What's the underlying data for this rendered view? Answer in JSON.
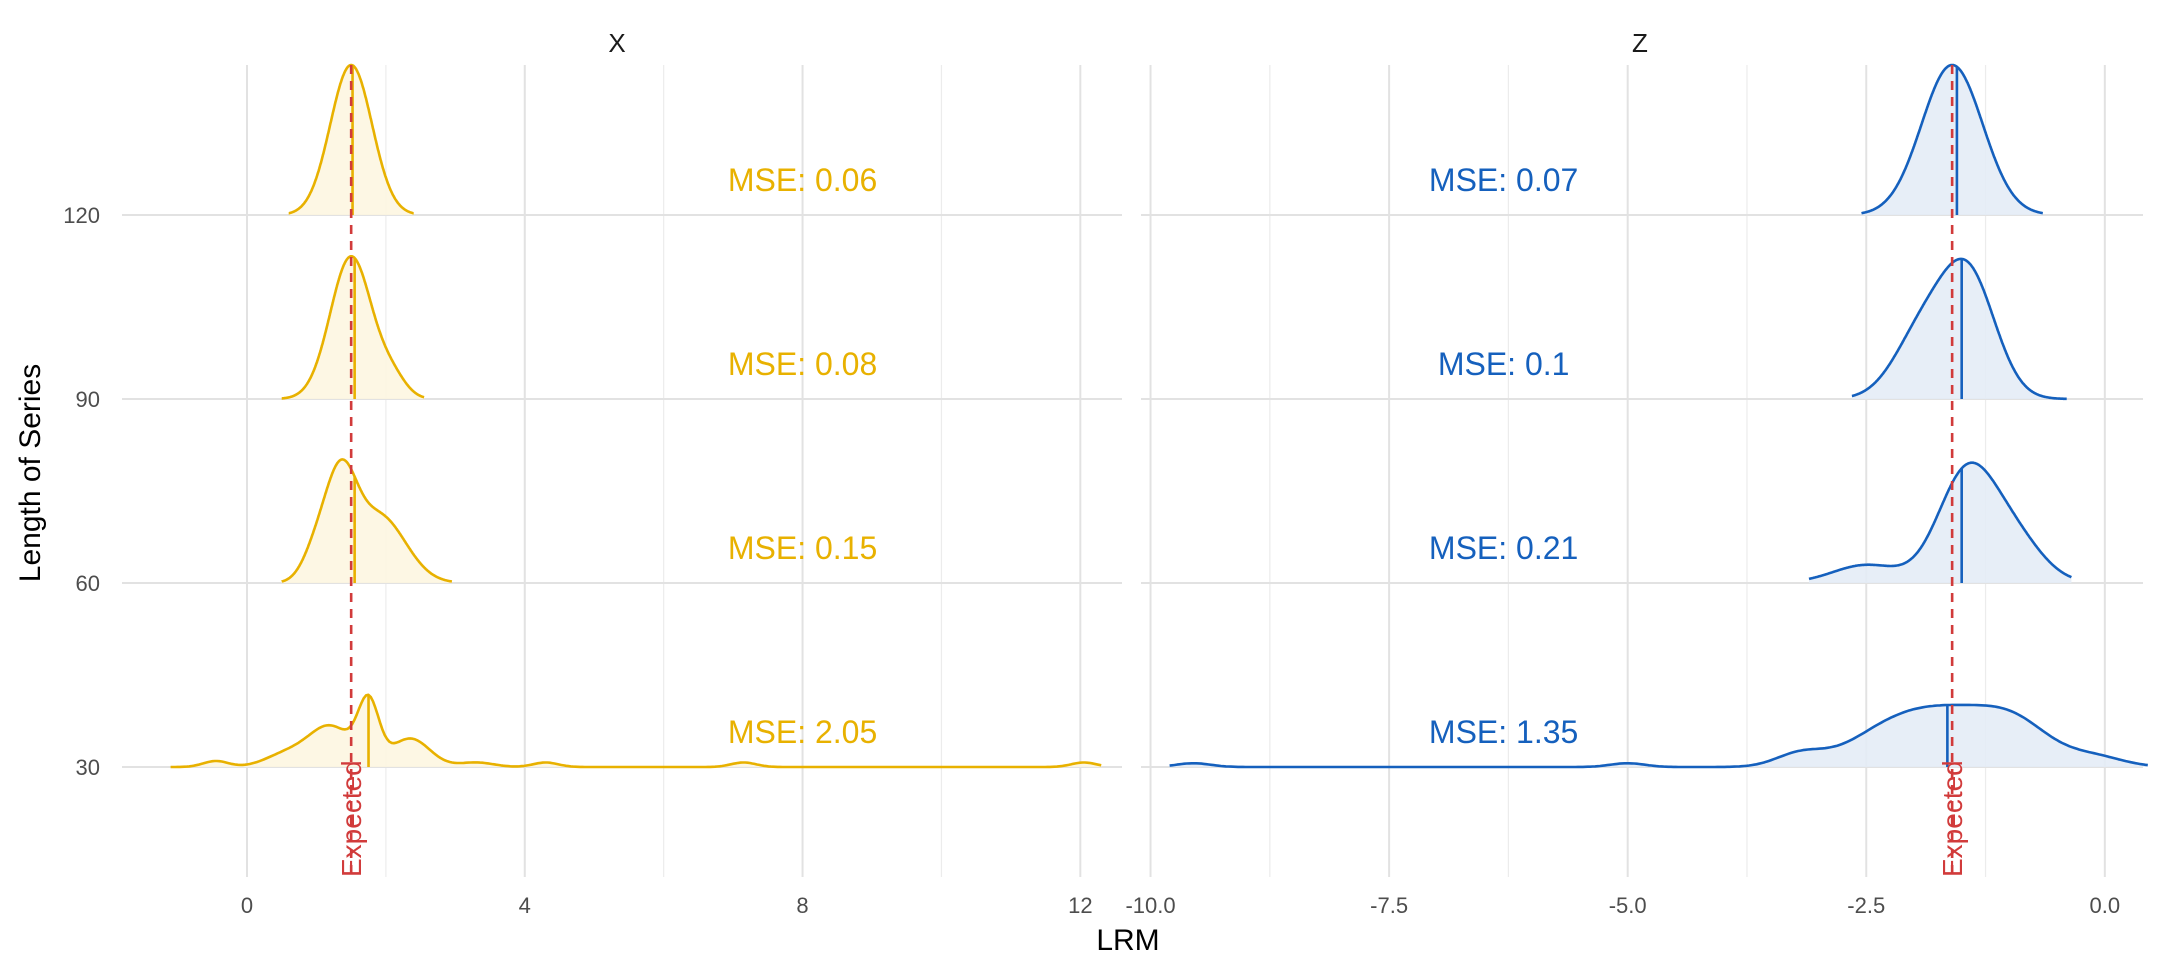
{
  "chart_data": {
    "type": "ridgeline",
    "xlabel": "LRM",
    "ylabel": "Length of Series",
    "y_ticks": [
      30,
      60,
      90,
      120
    ],
    "expected_label": "Expected",
    "expected_color": "#d13b3b",
    "panels": [
      {
        "title": "X",
        "color": "#e8b100",
        "fill": "#fdf6e1",
        "xlim": [
          -1.8,
          12.6
        ],
        "x_ticks": [
          0,
          4,
          8,
          12
        ],
        "x_tick_labels": [
          "0",
          "4",
          "8",
          "12"
        ],
        "expected": 1.5,
        "series": [
          {
            "length": 120,
            "mse_label": "MSE: 0.06",
            "mse_x": 8.0,
            "mean": 1.52,
            "range": [
              0.6,
              2.4
            ],
            "peaks": [
              [
                1.5,
                1.0,
                0.3
              ]
            ]
          },
          {
            "length": 90,
            "mse_label": "MSE: 0.08",
            "mse_x": 8.0,
            "mean": 1.55,
            "range": [
              0.5,
              2.55
            ],
            "peaks": [
              [
                1.5,
                0.95,
                0.3
              ],
              [
                2.1,
                0.12,
                0.2
              ]
            ]
          },
          {
            "length": 60,
            "mse_label": "MSE: 0.15",
            "mse_x": 8.0,
            "mean": 1.55,
            "range": [
              0.5,
              2.95
            ],
            "peaks": [
              [
                1.35,
                0.62,
                0.22
              ],
              [
                1.9,
                0.45,
                0.38
              ],
              [
                1.0,
                0.2,
                0.2
              ]
            ]
          },
          {
            "length": 30,
            "mse_label": "MSE: 2.05",
            "mse_x": 8.0,
            "mean": 1.75,
            "range": [
              -1.1,
              12.3
            ],
            "peaks": [
              [
                1.75,
                0.4,
                0.15
              ],
              [
                1.2,
                0.27,
                0.32
              ],
              [
                2.35,
                0.19,
                0.28
              ],
              [
                0.55,
                0.08,
                0.3
              ],
              [
                -0.45,
                0.04,
                0.18
              ],
              [
                3.3,
                0.03,
                0.25
              ],
              [
                4.3,
                0.03,
                0.18
              ],
              [
                7.15,
                0.03,
                0.18
              ],
              [
                12.05,
                0.03,
                0.18
              ]
            ]
          }
        ]
      },
      {
        "title": "Z",
        "color": "#1560bd",
        "fill": "#e4ecf6",
        "xlim": [
          -10.1,
          0.4
        ],
        "x_ticks": [
          -10.0,
          -7.5,
          -5.0,
          -2.5,
          0.0
        ],
        "x_tick_labels": [
          "-10.0",
          "-7.5",
          "-5.0",
          "-2.5",
          "0.0"
        ],
        "expected": -1.6,
        "series": [
          {
            "length": 120,
            "mse_label": "MSE: 0.07",
            "mse_x": -6.3,
            "mean": -1.55,
            "range": [
              -2.55,
              -0.65
            ],
            "peaks": [
              [
                -1.6,
                1.0,
                0.32
              ]
            ]
          },
          {
            "length": 90,
            "mse_label": "MSE: 0.1",
            "mse_x": -6.3,
            "mean": -1.5,
            "range": [
              -2.65,
              -0.4
            ],
            "peaks": [
              [
                -1.42,
                0.78,
                0.28
              ],
              [
                -1.9,
                0.45,
                0.3
              ]
            ]
          },
          {
            "length": 60,
            "mse_label": "MSE: 0.21",
            "mse_x": -6.3,
            "mean": -1.5,
            "range": [
              -3.1,
              -0.35
            ],
            "peaks": [
              [
                -1.45,
                0.72,
                0.3
              ],
              [
                -0.95,
                0.28,
                0.3
              ],
              [
                -2.5,
                0.12,
                0.35
              ]
            ]
          },
          {
            "length": 30,
            "mse_label": "MSE: 1.35",
            "mse_x": -6.3,
            "mean": -1.65,
            "range": [
              -9.8,
              0.45
            ],
            "peaks": [
              [
                -1.55,
                0.35,
                0.6
              ],
              [
                -0.9,
                0.15,
                0.35
              ],
              [
                -2.3,
                0.15,
                0.45
              ],
              [
                -3.2,
                0.08,
                0.25
              ],
              [
                -0.1,
                0.06,
                0.3
              ],
              [
                -5.0,
                0.025,
                0.18
              ],
              [
                -9.55,
                0.025,
                0.18
              ]
            ]
          }
        ]
      }
    ]
  }
}
